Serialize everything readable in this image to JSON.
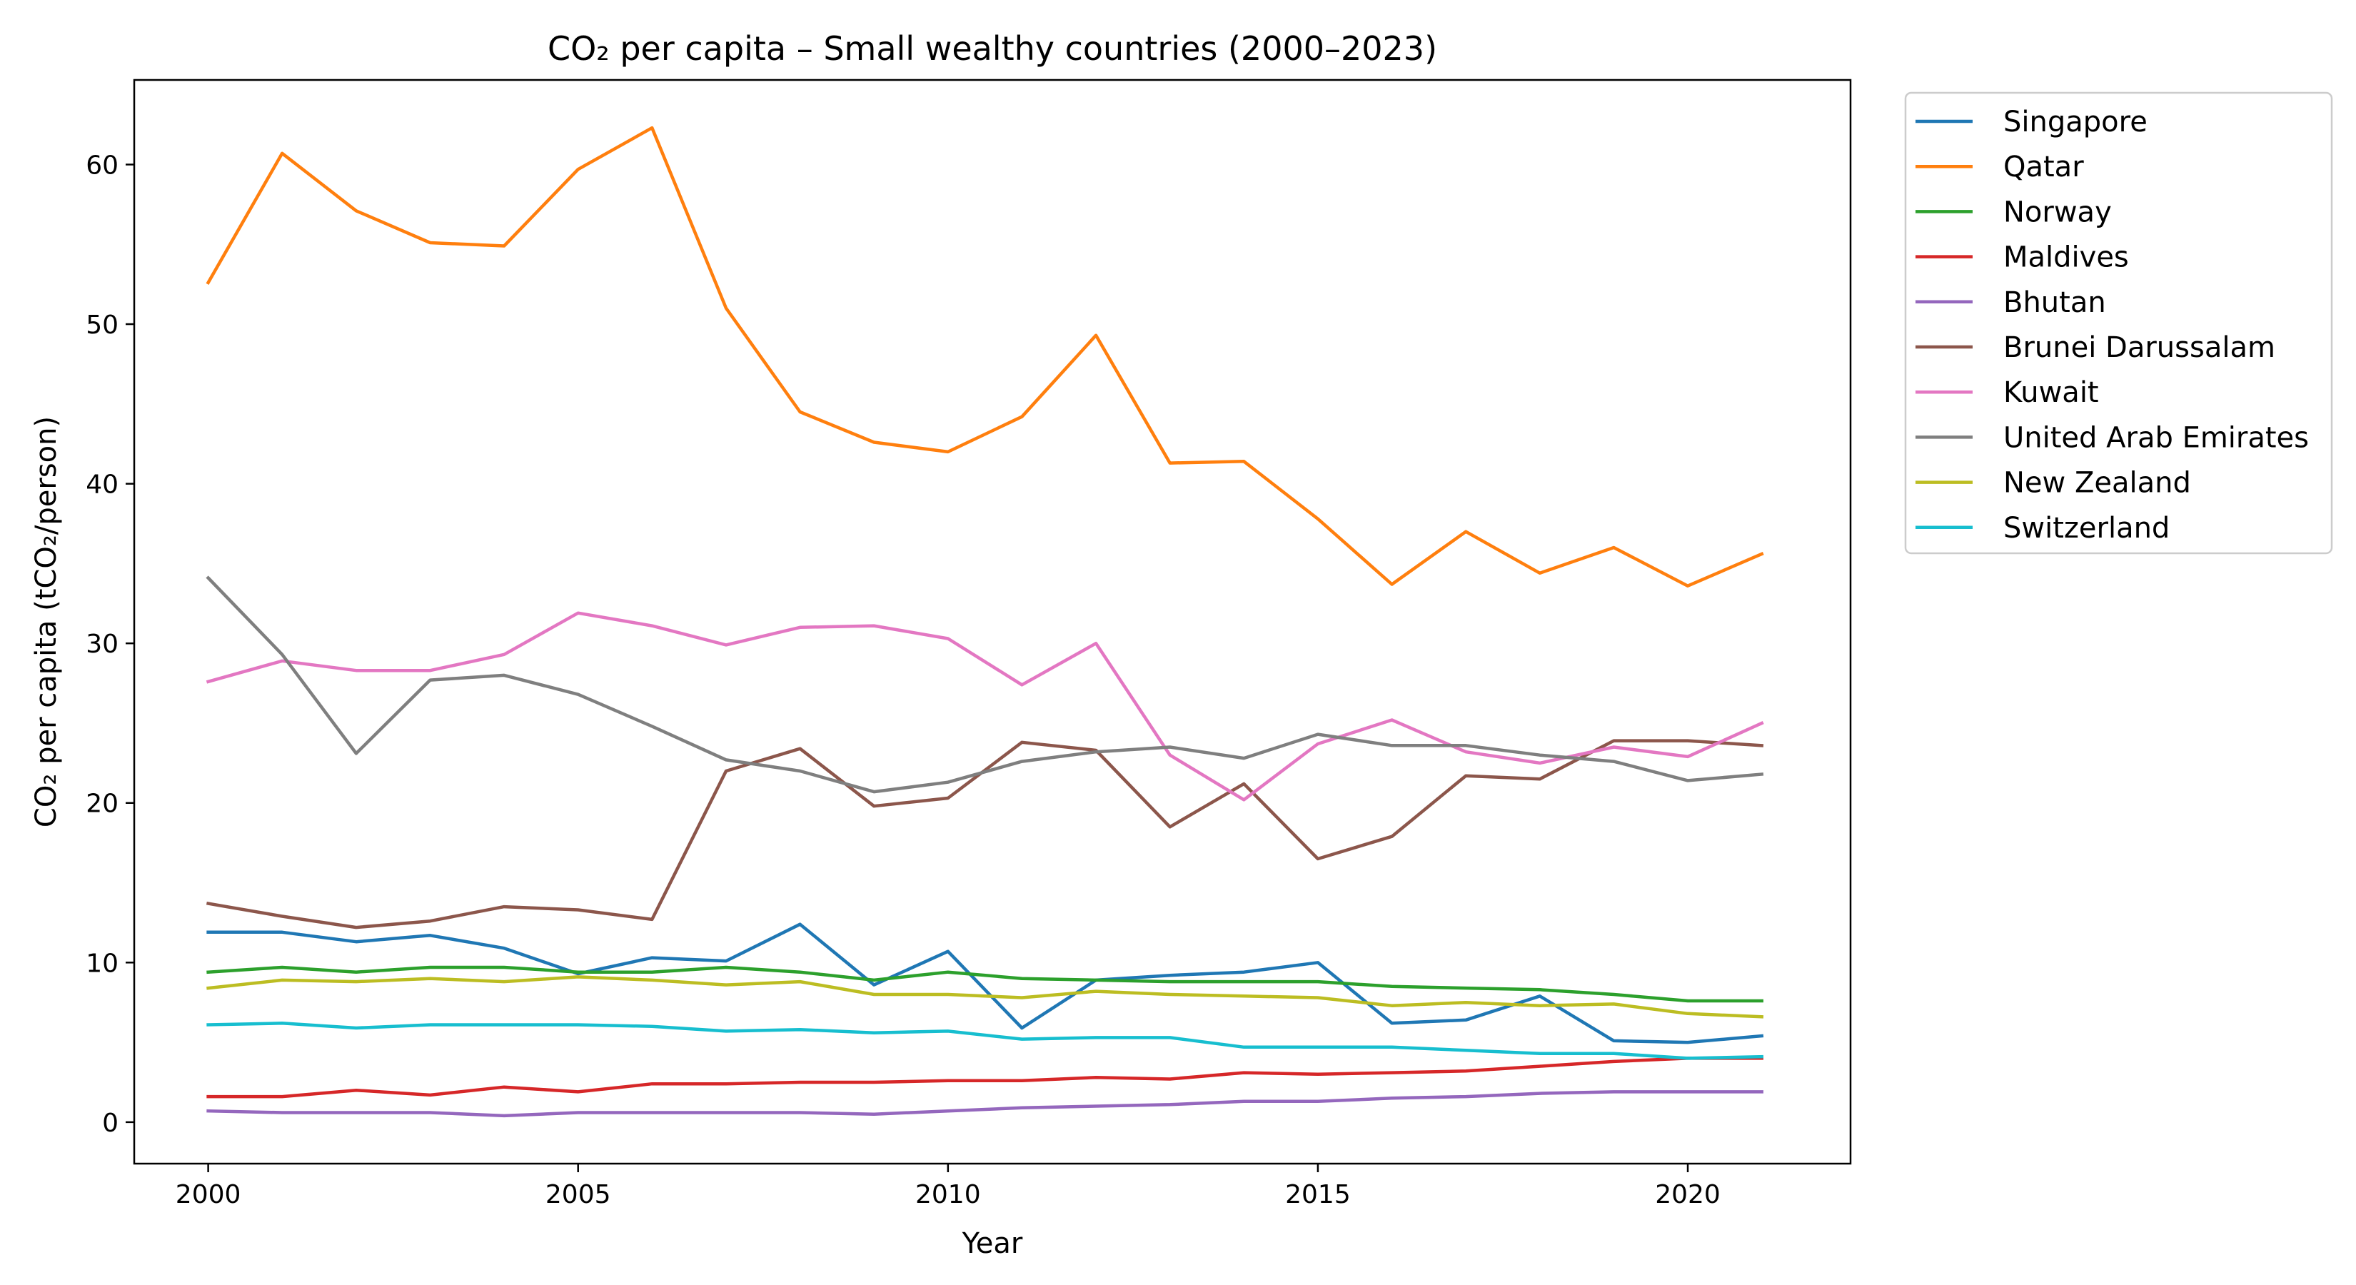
{
  "chart_data": {
    "type": "line",
    "title": "CO₂ per capita – Small wealthy countries (2000–2023)",
    "xlabel": "Year",
    "ylabel": "CO₂ per capita (tCO₂/person)",
    "xlim": [
      1999,
      2022.2
    ],
    "ylim": [
      -2.6,
      65.3
    ],
    "xticks": [
      2000,
      2005,
      2010,
      2015,
      2020
    ],
    "yticks": [
      0,
      10,
      20,
      30,
      40,
      50,
      60
    ],
    "grid": false,
    "legend_position": "outside-top-right",
    "x": [
      2000,
      2001,
      2002,
      2003,
      2004,
      2005,
      2006,
      2007,
      2008,
      2009,
      2010,
      2011,
      2012,
      2013,
      2014,
      2015,
      2016,
      2017,
      2018,
      2019,
      2020,
      2021
    ],
    "series": [
      {
        "name": "Singapore",
        "color": "#1f77b4",
        "values": [
          11.9,
          11.9,
          11.3,
          11.7,
          10.9,
          9.3,
          10.3,
          10.1,
          12.4,
          8.6,
          10.7,
          5.9,
          8.9,
          9.2,
          9.4,
          10.0,
          6.2,
          6.4,
          7.9,
          5.1,
          5.0,
          5.4
        ]
      },
      {
        "name": "Qatar",
        "color": "#ff7f0e",
        "values": [
          52.6,
          60.7,
          57.1,
          55.1,
          54.9,
          59.7,
          62.3,
          51.0,
          44.5,
          42.6,
          42.0,
          44.2,
          49.3,
          41.3,
          41.4,
          37.8,
          33.7,
          37.0,
          34.4,
          36.0,
          33.6,
          35.6
        ]
      },
      {
        "name": "Norway",
        "color": "#2ca02c",
        "values": [
          9.4,
          9.7,
          9.4,
          9.7,
          9.7,
          9.4,
          9.4,
          9.7,
          9.4,
          8.9,
          9.4,
          9.0,
          8.9,
          8.8,
          8.8,
          8.8,
          8.5,
          8.4,
          8.3,
          8.0,
          7.6,
          7.6
        ]
      },
      {
        "name": "Maldives",
        "color": "#d62728",
        "values": [
          1.6,
          1.6,
          2.0,
          1.7,
          2.2,
          1.9,
          2.4,
          2.4,
          2.5,
          2.5,
          2.6,
          2.6,
          2.8,
          2.7,
          3.1,
          3.0,
          3.1,
          3.2,
          3.5,
          3.8,
          4.0,
          4.0
        ]
      },
      {
        "name": "Bhutan",
        "color": "#9467bd",
        "values": [
          0.7,
          0.6,
          0.6,
          0.6,
          0.4,
          0.6,
          0.6,
          0.6,
          0.6,
          0.5,
          0.7,
          0.9,
          1.0,
          1.1,
          1.3,
          1.3,
          1.5,
          1.6,
          1.8,
          1.9,
          1.9,
          1.9
        ]
      },
      {
        "name": "Brunei Darussalam",
        "color": "#8c564b",
        "values": [
          13.7,
          12.9,
          12.2,
          12.6,
          13.5,
          13.3,
          12.7,
          22.0,
          23.4,
          19.8,
          20.3,
          23.8,
          23.3,
          18.5,
          21.2,
          16.5,
          17.9,
          21.7,
          21.5,
          23.9,
          23.9,
          23.6
        ]
      },
      {
        "name": "Kuwait",
        "color": "#e377c2",
        "values": [
          27.6,
          28.9,
          28.3,
          28.3,
          29.3,
          31.9,
          31.1,
          29.9,
          31.0,
          31.1,
          30.3,
          27.4,
          30.0,
          23.0,
          20.2,
          23.7,
          25.2,
          23.2,
          22.5,
          23.5,
          22.9,
          25.0
        ]
      },
      {
        "name": "United Arab Emirates",
        "color": "#7f7f7f",
        "values": [
          34.1,
          29.3,
          23.1,
          27.7,
          28.0,
          26.8,
          24.8,
          22.7,
          22.0,
          20.7,
          21.3,
          22.6,
          23.2,
          23.5,
          22.8,
          24.3,
          23.6,
          23.6,
          23.0,
          22.6,
          21.4,
          21.8
        ]
      },
      {
        "name": "New Zealand",
        "color": "#bcbd22",
        "values": [
          8.4,
          8.9,
          8.8,
          9.0,
          8.8,
          9.1,
          8.9,
          8.6,
          8.8,
          8.0,
          8.0,
          7.8,
          8.2,
          8.0,
          7.9,
          7.8,
          7.3,
          7.5,
          7.3,
          7.4,
          6.8,
          6.6
        ]
      },
      {
        "name": "Switzerland",
        "color": "#17becf",
        "values": [
          6.1,
          6.2,
          5.9,
          6.1,
          6.1,
          6.1,
          6.0,
          5.7,
          5.8,
          5.6,
          5.7,
          5.2,
          5.3,
          5.3,
          4.7,
          4.7,
          4.7,
          4.5,
          4.3,
          4.3,
          4.0,
          4.1
        ]
      }
    ]
  }
}
